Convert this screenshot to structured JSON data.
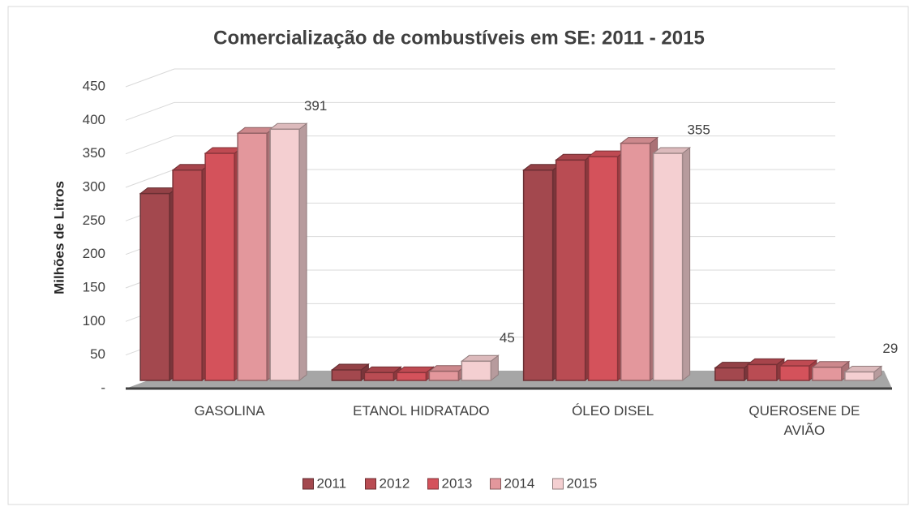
{
  "chart_data": {
    "type": "bar3d",
    "title": "Comercialização de combustíveis em SE: 2011 - 2015",
    "y_label": "Milhões de Litros",
    "categories": [
      "GASOLINA",
      "ETANOL HIDRATADO",
      "ÓLEO DISEL",
      "QUEROSENE DE AVIÃO"
    ],
    "series": [
      {
        "name": "2011",
        "color": "#a3484e",
        "values": [
          295,
          32,
          330,
          35
        ]
      },
      {
        "name": "2012",
        "color": "#b94c53",
        "values": [
          330,
          28,
          345,
          40
        ]
      },
      {
        "name": "2013",
        "color": "#d4525b",
        "values": [
          355,
          28,
          350,
          38
        ]
      },
      {
        "name": "2014",
        "color": "#e3979c",
        "values": [
          385,
          30,
          370,
          36
        ]
      },
      {
        "name": "2015",
        "color": "#f4cfd1",
        "values": [
          391,
          45,
          355,
          29
        ],
        "show_value_labels": true
      }
    ],
    "ylim": [
      0,
      450
    ],
    "yticks": [
      {
        "value": 0,
        "label": "-"
      },
      50,
      100,
      150,
      200,
      250,
      300,
      350,
      400,
      450
    ],
    "grid": true,
    "legend": "bottom"
  }
}
